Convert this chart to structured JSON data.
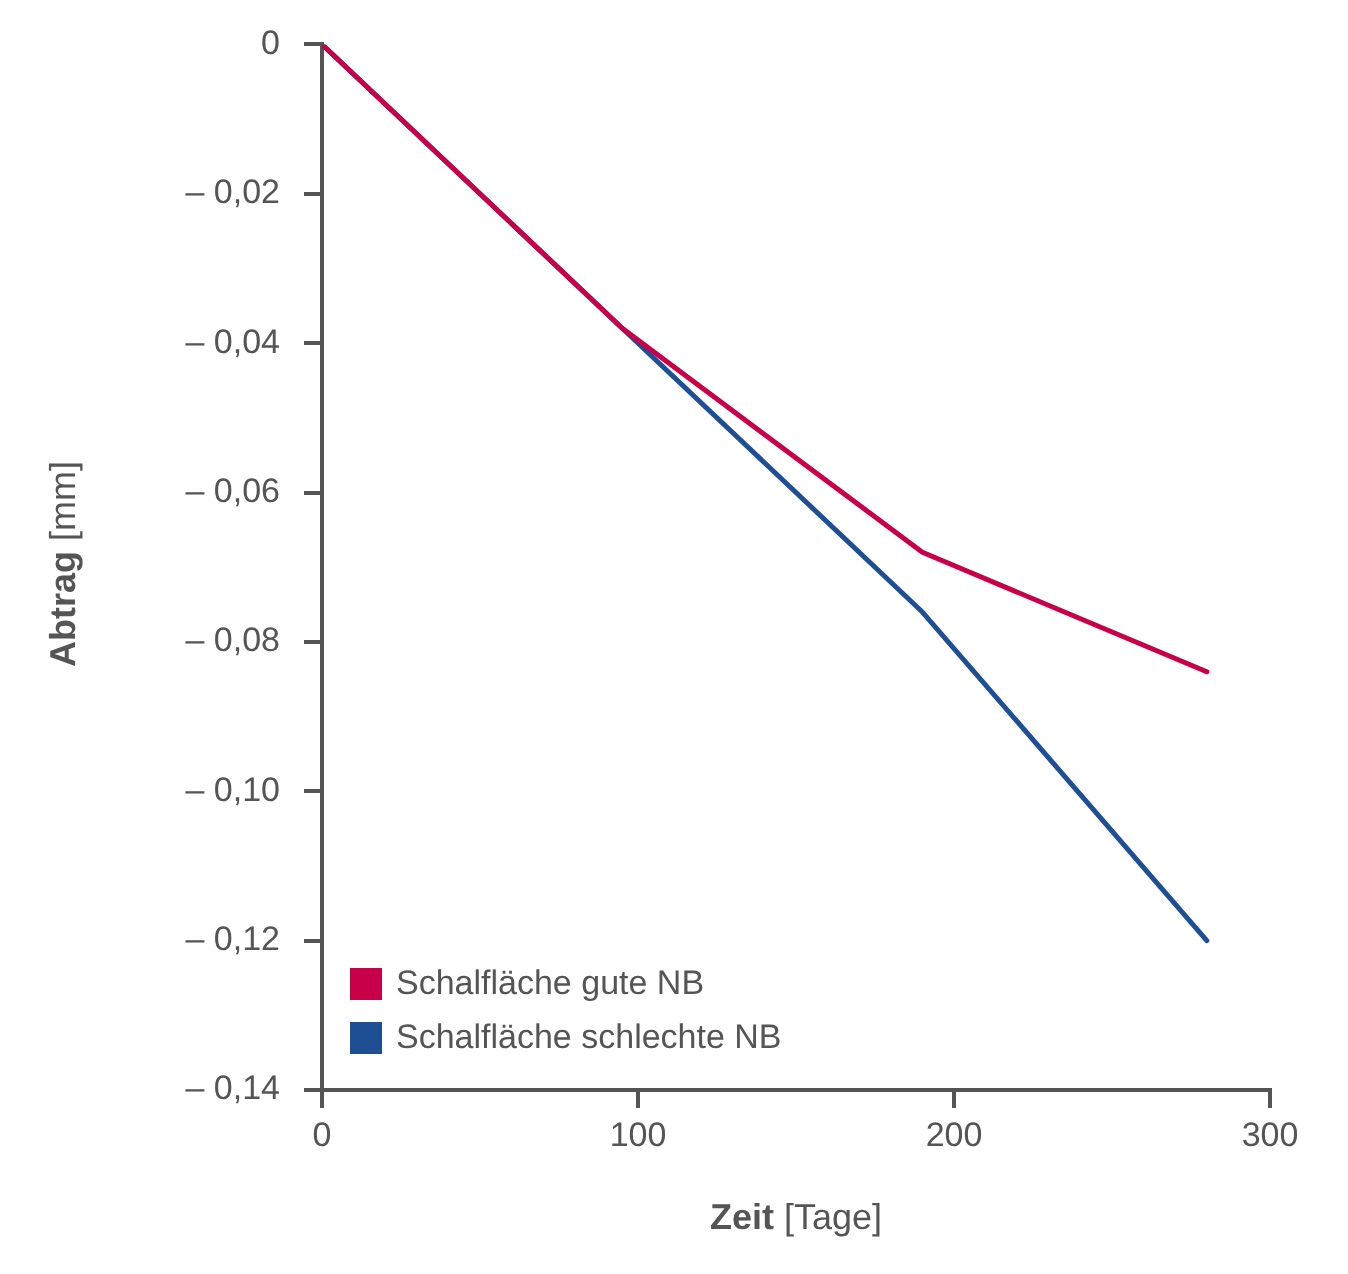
{
  "chart_data": {
    "type": "line",
    "xlabel": "Zeit [Tage]",
    "ylabel": "Abtrag [mm]",
    "xlim": [
      0,
      300
    ],
    "xticks": [
      0,
      100,
      200,
      300
    ],
    "ylim": [
      -0.14,
      0
    ],
    "yticks": [
      {
        "value": 0,
        "label": "0"
      },
      {
        "value": -0.02,
        "label": "– 0,02"
      },
      {
        "value": -0.04,
        "label": "– 0,04"
      },
      {
        "value": -0.06,
        "label": "– 0,06"
      },
      {
        "value": -0.08,
        "label": "– 0,08"
      },
      {
        "value": -0.1,
        "label": "– 0,10"
      },
      {
        "value": -0.12,
        "label": "– 0,12"
      },
      {
        "value": -0.14,
        "label": "– 0,14"
      }
    ],
    "grid": false,
    "legend": "bottom left",
    "marker": "none",
    "line_style": "solid",
    "series": [
      {
        "name": "Schalfläche gute NB",
        "color": "#c8004a",
        "x": [
          0,
          95,
          190,
          280
        ],
        "values": [
          0,
          -0.038,
          -0.068,
          -0.084
        ]
      },
      {
        "name": "Schalfläche schlechte NB",
        "color": "#1e4f95",
        "x": [
          0,
          95,
          190,
          280
        ],
        "values": [
          0,
          -0.038,
          -0.076,
          -0.12
        ]
      }
    ]
  }
}
